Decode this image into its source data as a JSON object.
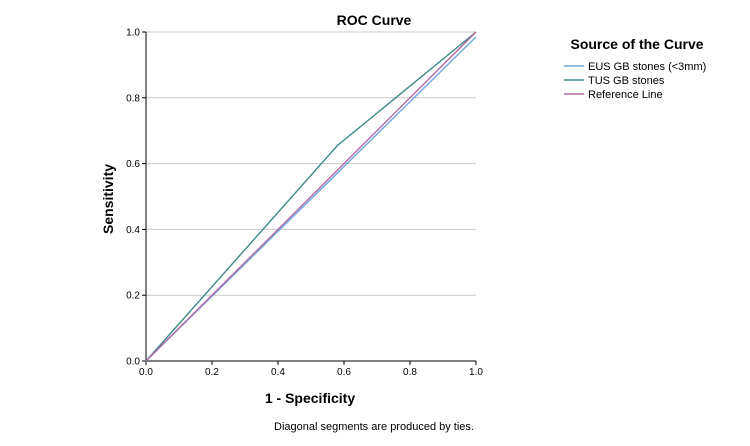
{
  "chart_data": {
    "type": "line",
    "title": "ROC Curve",
    "xlabel": "1 - Specificity",
    "ylabel": "Sensitivity",
    "xlim": [
      0,
      1
    ],
    "ylim": [
      0,
      1
    ],
    "x_ticks": [
      "0.0",
      "0.2",
      "0.4",
      "0.6",
      "0.8",
      "1.0"
    ],
    "y_ticks": [
      "0.0",
      "0.2",
      "0.4",
      "0.6",
      "0.8",
      "1.0"
    ],
    "grid": "horizontal",
    "legend": {
      "title": "Source of the Curve",
      "placement": "top-right",
      "entries": [
        "EUS GB stones (<3mm)",
        "TUS GB stones",
        "Reference Line"
      ]
    },
    "series": [
      {
        "name": "EUS GB stones (<3mm)",
        "color": "#6fa8dc",
        "points": [
          [
            0,
            0
          ],
          [
            1.0,
            0.985
          ]
        ]
      },
      {
        "name": "TUS GB stones",
        "color": "#3f8a87",
        "points": [
          [
            0,
            0
          ],
          [
            0.58,
            0.655
          ],
          [
            1.0,
            1.0
          ]
        ]
      },
      {
        "name": "Reference Line",
        "color": "#b26aa8",
        "points": [
          [
            0,
            0
          ],
          [
            1.0,
            1.0
          ]
        ]
      }
    ],
    "footnote": "Diagonal segments are produced by ties."
  }
}
